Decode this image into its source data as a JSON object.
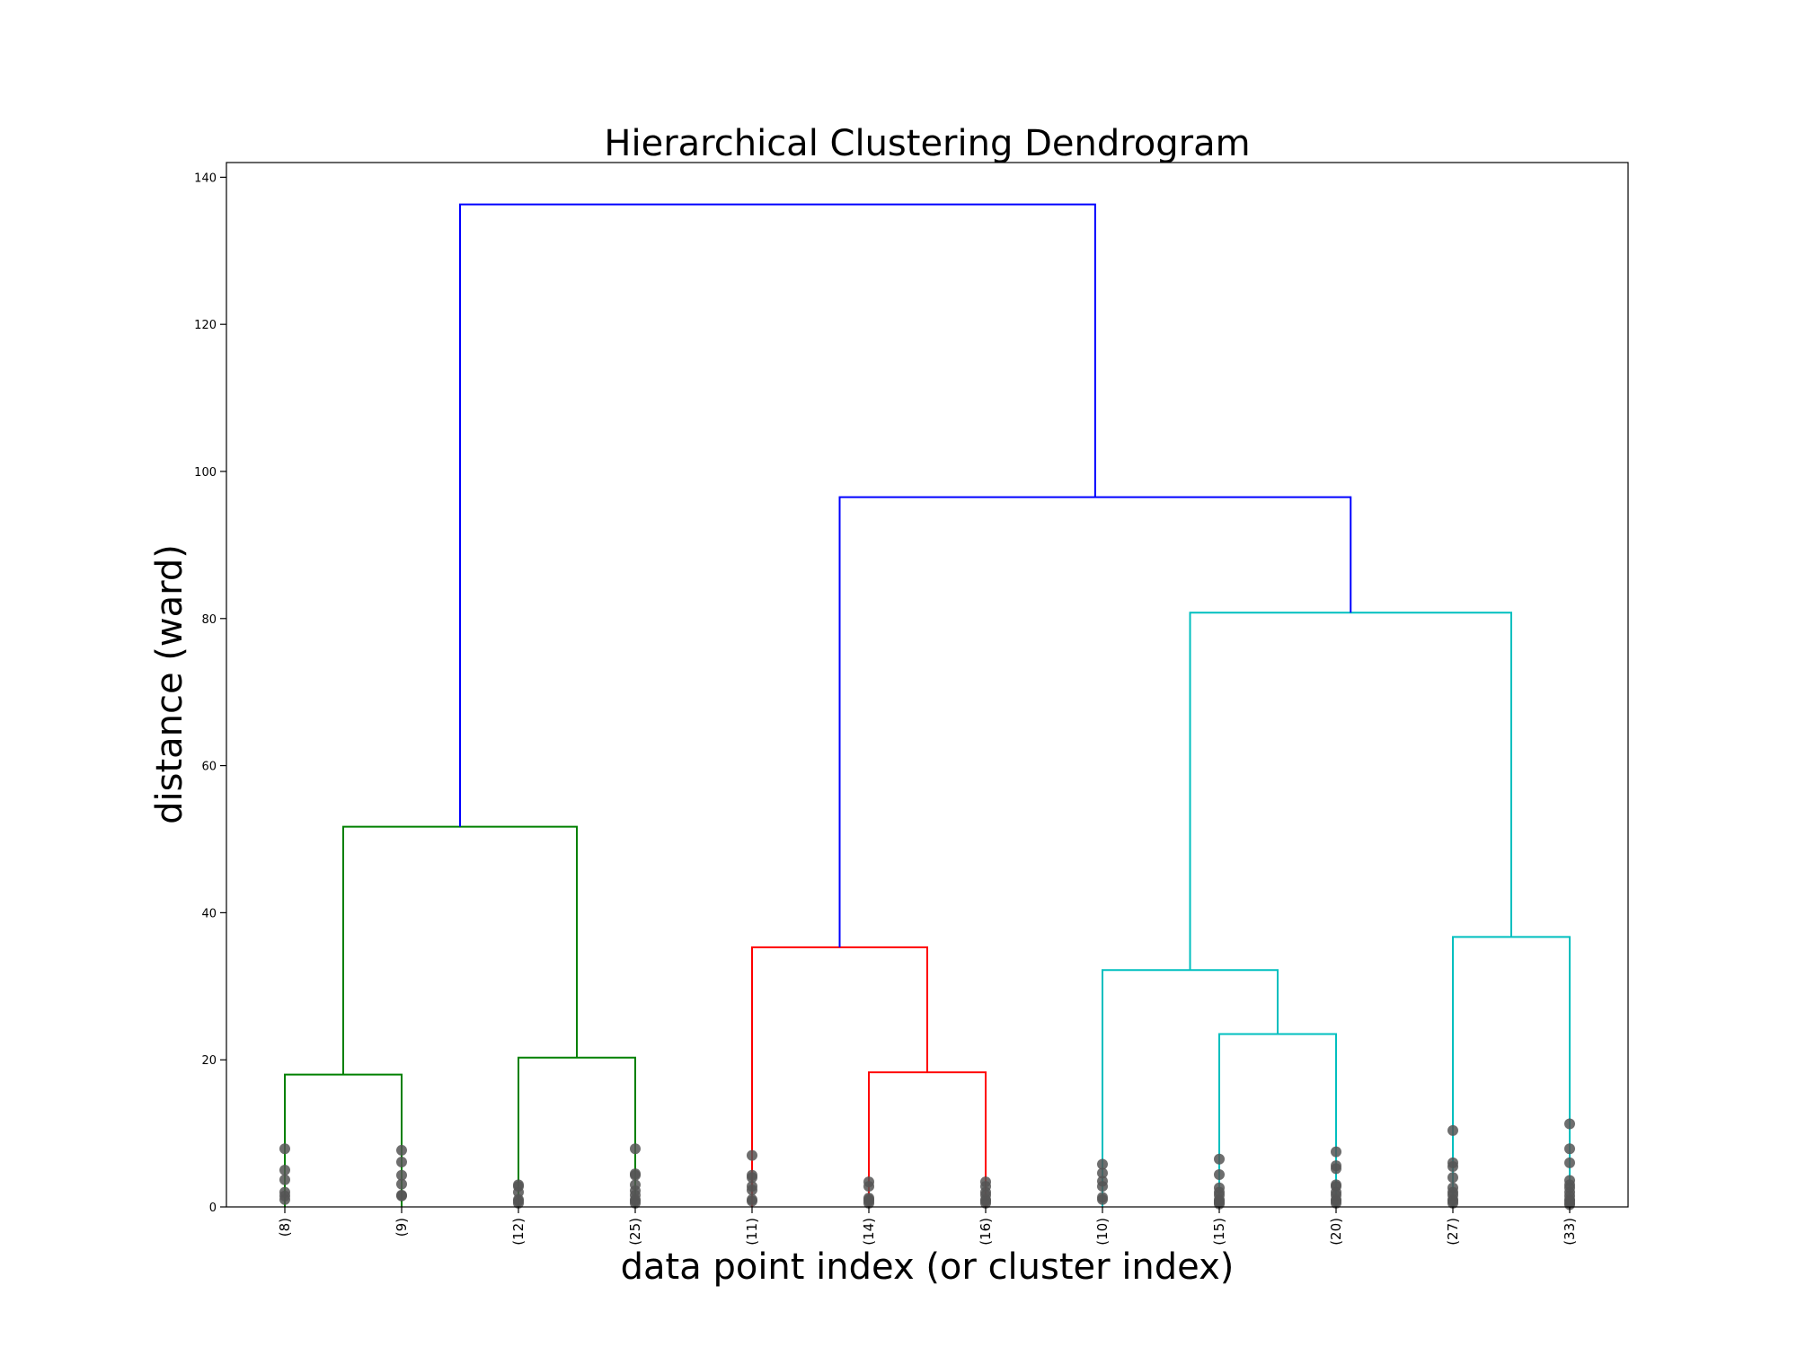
{
  "chart_data": {
    "type": "dendrogram",
    "title": "Hierarchical Clustering Dendrogram",
    "xlabel": "data point index (or cluster index)",
    "ylabel": "distance (ward)",
    "ylim": [
      0,
      142
    ],
    "yticks": [
      0,
      20,
      40,
      60,
      80,
      100,
      120,
      140
    ],
    "leaves": [
      "(8)",
      "(9)",
      "(12)",
      "(25)",
      "(11)",
      "(14)",
      "(16)",
      "(10)",
      "(15)",
      "(20)",
      "(27)",
      "(33)"
    ],
    "colors": {
      "above_threshold": "#0000ff",
      "cluster_1": "#008000",
      "cluster_2": "#ff0000",
      "cluster_3": "#00bfbf",
      "dots": "#555555"
    },
    "merges": [
      {
        "left": 0,
        "right": 1,
        "height": 18.0,
        "color": "cluster_1"
      },
      {
        "left": 2,
        "right": 3,
        "height": 20.3,
        "color": "cluster_1"
      },
      {
        "left": "0-1",
        "right": "2-3",
        "height": 51.7,
        "color": "cluster_1"
      },
      {
        "left": 5,
        "right": 6,
        "height": 18.3,
        "color": "cluster_2"
      },
      {
        "left": 4,
        "right": "5-6",
        "height": 35.3,
        "color": "cluster_2"
      },
      {
        "left": 8,
        "right": 9,
        "height": 23.5,
        "color": "cluster_3"
      },
      {
        "left": 7,
        "right": "8-9",
        "height": 32.2,
        "color": "cluster_3"
      },
      {
        "left": 10,
        "right": 11,
        "height": 36.7,
        "color": "cluster_3"
      },
      {
        "left": "7-9",
        "right": "10-11",
        "height": 80.8,
        "color": "cluster_3"
      },
      {
        "left": "4-6",
        "right": "7-11",
        "height": 96.5,
        "color": "above_threshold"
      },
      {
        "left": "0-3",
        "right": "4-11",
        "height": 136.3,
        "color": "above_threshold"
      }
    ],
    "leaf_point_heights": [
      [
        1.0,
        1.5,
        2.0,
        3.7,
        5.0,
        7.9
      ],
      [
        1.5,
        1.6,
        3.1,
        4.3,
        6.1,
        7.7
      ],
      [
        0.5,
        0.8,
        1.0,
        2.0,
        2.8,
        3.0
      ],
      [
        0.5,
        0.8,
        1.0,
        1.6,
        2.2,
        3.0,
        4.3,
        4.5,
        7.9
      ],
      [
        0.8,
        1.0,
        2.3,
        2.8,
        4.0,
        4.3,
        7.0
      ],
      [
        0.5,
        0.8,
        1.0,
        1.2,
        2.8,
        3.4
      ],
      [
        0.5,
        0.8,
        1.0,
        1.6,
        2.0,
        2.8,
        3.4
      ],
      [
        1.0,
        1.3,
        2.8,
        3.5,
        4.6,
        5.8
      ],
      [
        0.4,
        0.6,
        0.8,
        1.0,
        1.6,
        2.0,
        2.6,
        4.4,
        6.5
      ],
      [
        0.5,
        0.8,
        1.0,
        1.6,
        2.0,
        2.8,
        3.0,
        5.2,
        5.6,
        7.5
      ],
      [
        0.5,
        0.8,
        1.0,
        1.6,
        2.0,
        2.6,
        4.0,
        5.5,
        6.0,
        10.4
      ],
      [
        0.3,
        0.5,
        0.8,
        1.0,
        1.5,
        2.0,
        2.6,
        3.0,
        3.6,
        6.0,
        7.9,
        11.3
      ]
    ]
  }
}
